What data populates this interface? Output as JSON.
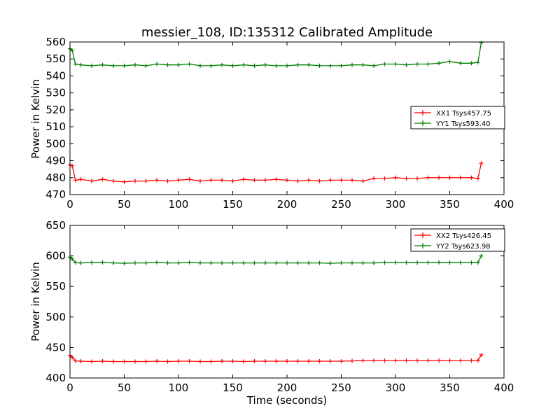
{
  "chart_data": [
    {
      "type": "line",
      "title": "messier_108, ID:135312 Calibrated Amplitude",
      "xlabel": "",
      "ylabel": "Power in Kelvin",
      "xlim": [
        0,
        400
      ],
      "ylim": [
        470,
        560
      ],
      "xticks": [
        0,
        50,
        100,
        150,
        200,
        250,
        300,
        350,
        400
      ],
      "yticks": [
        470,
        480,
        490,
        500,
        510,
        520,
        530,
        540,
        550,
        560
      ],
      "grid": false,
      "legend_position": "center-right",
      "series": [
        {
          "name": "XX1 Tsys457.75",
          "color": "#ff0000",
          "marker": "+",
          "x": [
            0,
            2,
            5,
            10,
            20,
            30,
            40,
            50,
            60,
            70,
            80,
            90,
            100,
            110,
            120,
            130,
            140,
            150,
            160,
            170,
            180,
            190,
            200,
            210,
            220,
            230,
            240,
            250,
            260,
            270,
            280,
            290,
            300,
            310,
            320,
            330,
            340,
            350,
            360,
            370,
            376,
            379
          ],
          "values": [
            487.5,
            487.0,
            478.5,
            479.0,
            478.0,
            479.0,
            478.0,
            477.5,
            478.0,
            478.0,
            478.5,
            478.0,
            478.5,
            479.0,
            478.0,
            478.5,
            478.5,
            478.0,
            479.0,
            478.5,
            478.5,
            479.0,
            478.5,
            478.0,
            478.5,
            478.0,
            478.5,
            478.5,
            478.5,
            478.0,
            479.5,
            479.5,
            480.0,
            479.5,
            479.5,
            480.0,
            480.0,
            480.0,
            480.0,
            480.0,
            479.5,
            488.5
          ]
        },
        {
          "name": "YY1 Tsys593.40",
          "color": "#008000",
          "marker": "+",
          "x": [
            0,
            2,
            5,
            10,
            20,
            30,
            40,
            50,
            60,
            70,
            80,
            90,
            100,
            110,
            120,
            130,
            140,
            150,
            160,
            170,
            180,
            190,
            200,
            210,
            220,
            230,
            240,
            250,
            260,
            270,
            280,
            290,
            300,
            310,
            320,
            330,
            340,
            350,
            360,
            370,
            376,
            379
          ],
          "values": [
            556.0,
            555.0,
            547.0,
            546.5,
            546.0,
            546.5,
            546.0,
            546.0,
            546.5,
            546.0,
            547.0,
            546.5,
            546.5,
            547.0,
            546.0,
            546.0,
            546.5,
            546.0,
            546.5,
            546.0,
            546.5,
            546.0,
            546.0,
            546.5,
            546.5,
            546.0,
            546.0,
            546.0,
            546.5,
            546.5,
            546.0,
            547.0,
            547.0,
            546.5,
            547.0,
            547.0,
            547.5,
            548.5,
            547.5,
            547.5,
            548.0,
            559.5
          ]
        }
      ]
    },
    {
      "type": "line",
      "title": "",
      "xlabel": "Time (seconds)",
      "ylabel": "Power in Kelvin",
      "xlim": [
        0,
        400
      ],
      "ylim": [
        400,
        650
      ],
      "xticks": [
        0,
        50,
        100,
        150,
        200,
        250,
        300,
        350,
        400
      ],
      "yticks": [
        400,
        450,
        500,
        550,
        600,
        650
      ],
      "grid": false,
      "legend_position": "top-right",
      "series": [
        {
          "name": "XX2 Tsys426.45",
          "color": "#ff0000",
          "marker": "+",
          "x": [
            0,
            2,
            5,
            10,
            20,
            30,
            40,
            50,
            60,
            70,
            80,
            90,
            100,
            110,
            120,
            130,
            140,
            150,
            160,
            170,
            180,
            190,
            200,
            210,
            220,
            230,
            240,
            250,
            260,
            270,
            280,
            290,
            300,
            310,
            320,
            330,
            340,
            350,
            360,
            370,
            376,
            379
          ],
          "values": [
            437.0,
            434.0,
            428.0,
            427.5,
            427.0,
            427.5,
            427.0,
            427.0,
            427.0,
            427.0,
            427.5,
            427.0,
            427.5,
            427.5,
            427.0,
            427.0,
            427.5,
            427.5,
            427.0,
            427.5,
            427.5,
            427.5,
            427.5,
            427.5,
            427.5,
            427.5,
            427.5,
            427.5,
            428.0,
            428.5,
            428.5,
            428.5,
            428.5,
            428.5,
            428.5,
            428.5,
            428.5,
            428.5,
            428.5,
            428.5,
            428.5,
            438.0
          ]
        },
        {
          "name": "YY2 Tsys623.98",
          "color": "#008000",
          "marker": "+",
          "x": [
            0,
            2,
            5,
            10,
            20,
            30,
            40,
            50,
            60,
            70,
            80,
            90,
            100,
            110,
            120,
            130,
            140,
            150,
            160,
            170,
            180,
            190,
            200,
            210,
            220,
            230,
            240,
            250,
            260,
            270,
            280,
            290,
            300,
            310,
            320,
            330,
            340,
            350,
            360,
            370,
            376,
            379
          ],
          "values": [
            598.0,
            595.0,
            589.0,
            588.5,
            589.0,
            589.5,
            588.5,
            588.0,
            588.5,
            588.5,
            589.5,
            588.5,
            588.5,
            589.5,
            588.5,
            588.5,
            588.5,
            588.5,
            588.5,
            588.5,
            588.5,
            588.5,
            588.5,
            588.5,
            588.5,
            588.5,
            588.0,
            588.5,
            588.5,
            588.5,
            588.5,
            589.0,
            589.0,
            589.0,
            589.0,
            589.0,
            589.5,
            589.0,
            589.0,
            589.0,
            589.0,
            600.0
          ]
        }
      ]
    }
  ]
}
